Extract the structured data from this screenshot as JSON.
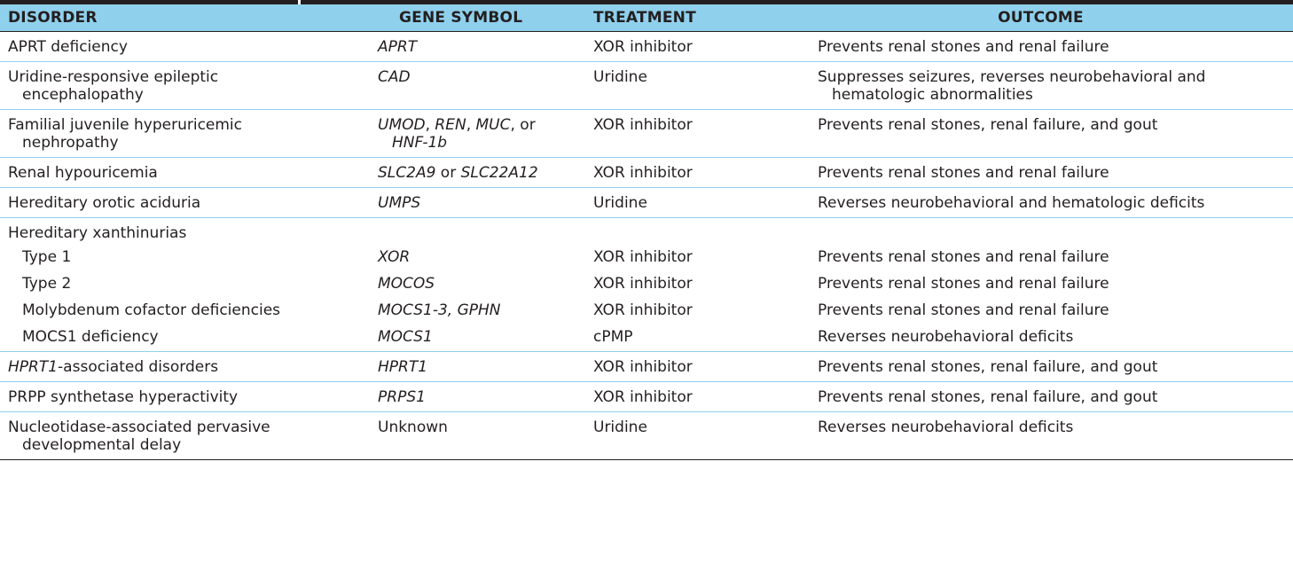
{
  "columns": {
    "disorder": "DISORDER",
    "gene_symbol": "GENE SYMBOL",
    "treatment": "TREATMENT",
    "outcome": "OUTCOME"
  },
  "rows": [
    {
      "disorder": "APRT deficiency",
      "gene": "APRT",
      "treatment": "XOR inhibitor",
      "outcome": "Prevents renal stones and renal failure"
    },
    {
      "disorder_line1": "Uridine-responsive epileptic",
      "disorder_line2": "encephalopathy",
      "gene": "CAD",
      "treatment": "Uridine",
      "outcome_line1": "Suppresses seizures, reverses neurobehavioral and",
      "outcome_line2": "hematologic abnormalities"
    },
    {
      "disorder_line1": "Familial juvenile hyperuricemic",
      "disorder_line2": "nephropathy",
      "gene_part1": "UMOD",
      "gene_sep1": ", ",
      "gene_part2": "REN",
      "gene_sep2": ", ",
      "gene_part3": "MUC",
      "gene_sep3": ", or",
      "gene_part4": "HNF-1b",
      "treatment": "XOR inhibitor",
      "outcome": "Prevents renal stones, renal failure, and gout"
    },
    {
      "disorder": "Renal hypouricemia",
      "gene_part1": "SLC2A9",
      "gene_sep": " or ",
      "gene_part2": "SLC22A12",
      "treatment": "XOR inhibitor",
      "outcome": "Prevents renal stones and renal failure"
    },
    {
      "disorder": "Hereditary orotic aciduria",
      "gene": "UMPS",
      "treatment": "Uridine",
      "outcome": "Reverses neurobehavioral and hematologic deficits"
    },
    {
      "disorder": "Hereditary xanthinurias"
    },
    {
      "disorder": "Type 1",
      "gene": "XOR",
      "treatment": "XOR inhibitor",
      "outcome": "Prevents renal stones and renal failure"
    },
    {
      "disorder": "Type 2",
      "gene": "MOCOS",
      "treatment": "XOR inhibitor",
      "outcome": "Prevents renal stones and renal failure"
    },
    {
      "disorder": "Molybdenum cofactor deficiencies",
      "gene": "MOCS1-3, GPHN",
      "treatment": "XOR inhibitor",
      "outcome": "Prevents renal stones and renal failure"
    },
    {
      "disorder": "MOCS1 deficiency",
      "gene": "MOCS1",
      "treatment": "cPMP",
      "outcome": "Reverses neurobehavioral deficits"
    },
    {
      "disorder_italic": "HPRT1",
      "disorder_rest": "-associated disorders",
      "gene": "HPRT1",
      "treatment": "XOR inhibitor",
      "outcome": "Prevents renal stones, renal failure, and gout"
    },
    {
      "disorder": "PRPP synthetase hyperactivity",
      "gene": "PRPS1",
      "treatment": "XOR inhibitor",
      "outcome": "Prevents renal stones, renal failure, and gout"
    },
    {
      "disorder_line1": "Nucleotidase-associated pervasive",
      "disorder_line2": "developmental delay",
      "gene": "Unknown",
      "treatment": "Uridine",
      "outcome": "Reverses neurobehavioral deficits"
    }
  ],
  "colors": {
    "header_bg": "#8fd0ec",
    "row_divider": "#8fd0ec",
    "rule": "#231f20",
    "text": "#231f20"
  }
}
